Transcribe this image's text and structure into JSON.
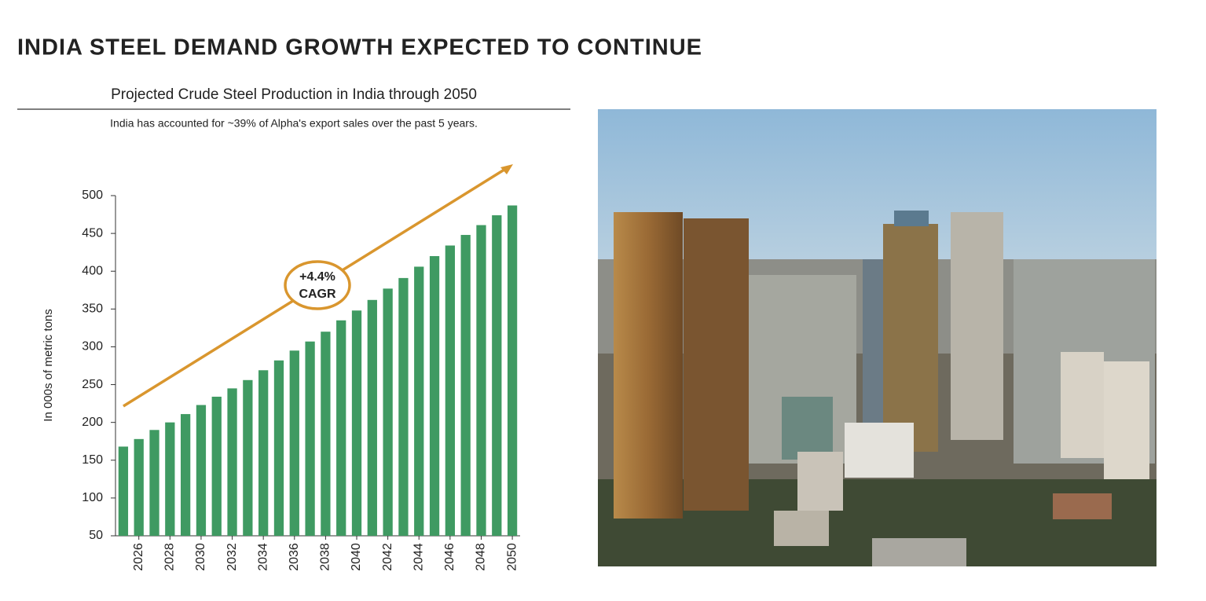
{
  "page_title": "INDIA STEEL DEMAND GROWTH EXPECTED TO CONTINUE",
  "chart_data": {
    "type": "bar",
    "title": "Projected Crude Steel Production in India through 2050",
    "subtitle": "India has accounted for ~39% of Alpha's export sales over the past 5 years.",
    "y_label": "In 000s of metric tons",
    "annotation": [
      "+4.4%",
      "CAGR"
    ],
    "categories": [
      null,
      "2026",
      null,
      "2028",
      null,
      "2030",
      null,
      "2032",
      null,
      "2034",
      null,
      "2036",
      null,
      "2038",
      null,
      "2040",
      null,
      "2042",
      null,
      "2044",
      null,
      "2046",
      null,
      "2048",
      null,
      "2050"
    ],
    "values": [
      168,
      178,
      190,
      200,
      211,
      223,
      234,
      245,
      256,
      269,
      282,
      295,
      307,
      320,
      335,
      348,
      362,
      377,
      391,
      406,
      420,
      434,
      448,
      461,
      474,
      487
    ],
    "color": "#3f9a62",
    "ylim": [
      50,
      500
    ],
    "yticks": [
      50,
      100,
      150,
      200,
      250,
      300,
      350,
      400,
      450,
      500
    ],
    "grid": false
  }
}
